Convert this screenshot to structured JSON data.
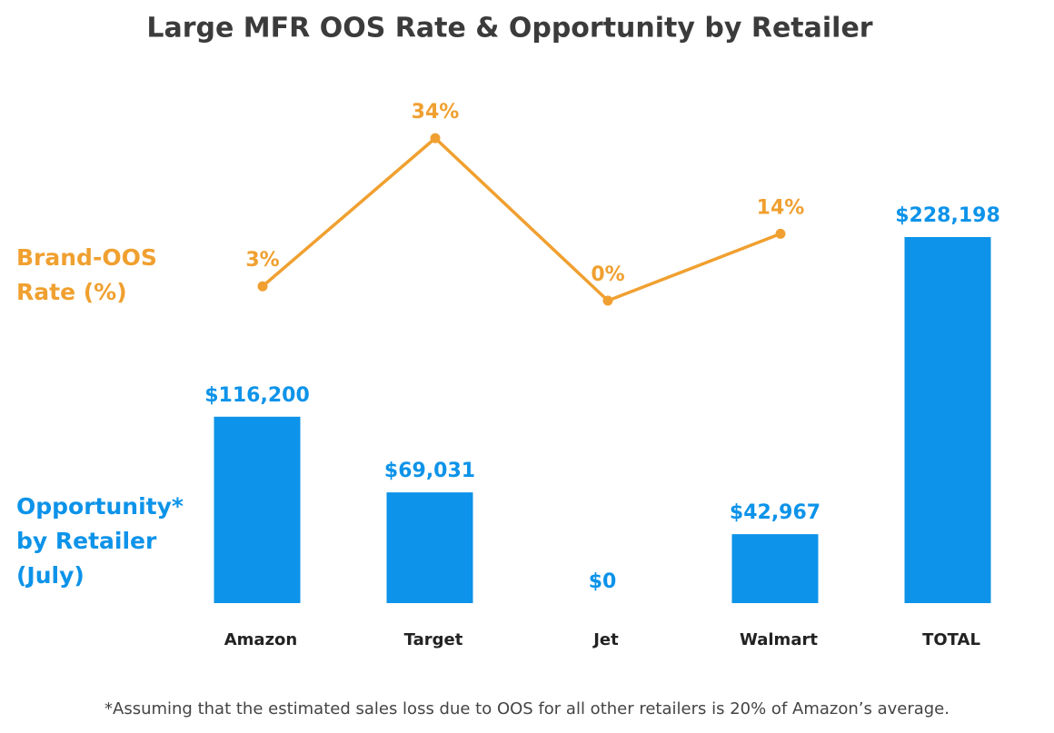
{
  "chart_data": {
    "type": "combo",
    "title": "Large MFR OOS Rate & Opportunity by Retailer",
    "categories": [
      "Amazon",
      "Target",
      "Jet",
      "Walmart",
      "TOTAL"
    ],
    "series": [
      {
        "name": "Opportunity* by Retailer (July)",
        "type": "bar",
        "color": "#0d93e9",
        "values": [
          116200,
          69031,
          0,
          42967,
          228198
        ],
        "value_labels": [
          "$116,200",
          "$69,031",
          "$0",
          "$42,967",
          "$228,198"
        ]
      },
      {
        "name": "Brand-OOS Rate (%)",
        "type": "line",
        "color": "#f0a030",
        "values": [
          3,
          34,
          0,
          14,
          null
        ],
        "value_labels": [
          "3%",
          "34%",
          "0%",
          "14%",
          null
        ]
      }
    ],
    "footnote": "*Assuming that the estimated sales loss due to OOS for all other retailers is 20% of Amazon’s average."
  }
}
